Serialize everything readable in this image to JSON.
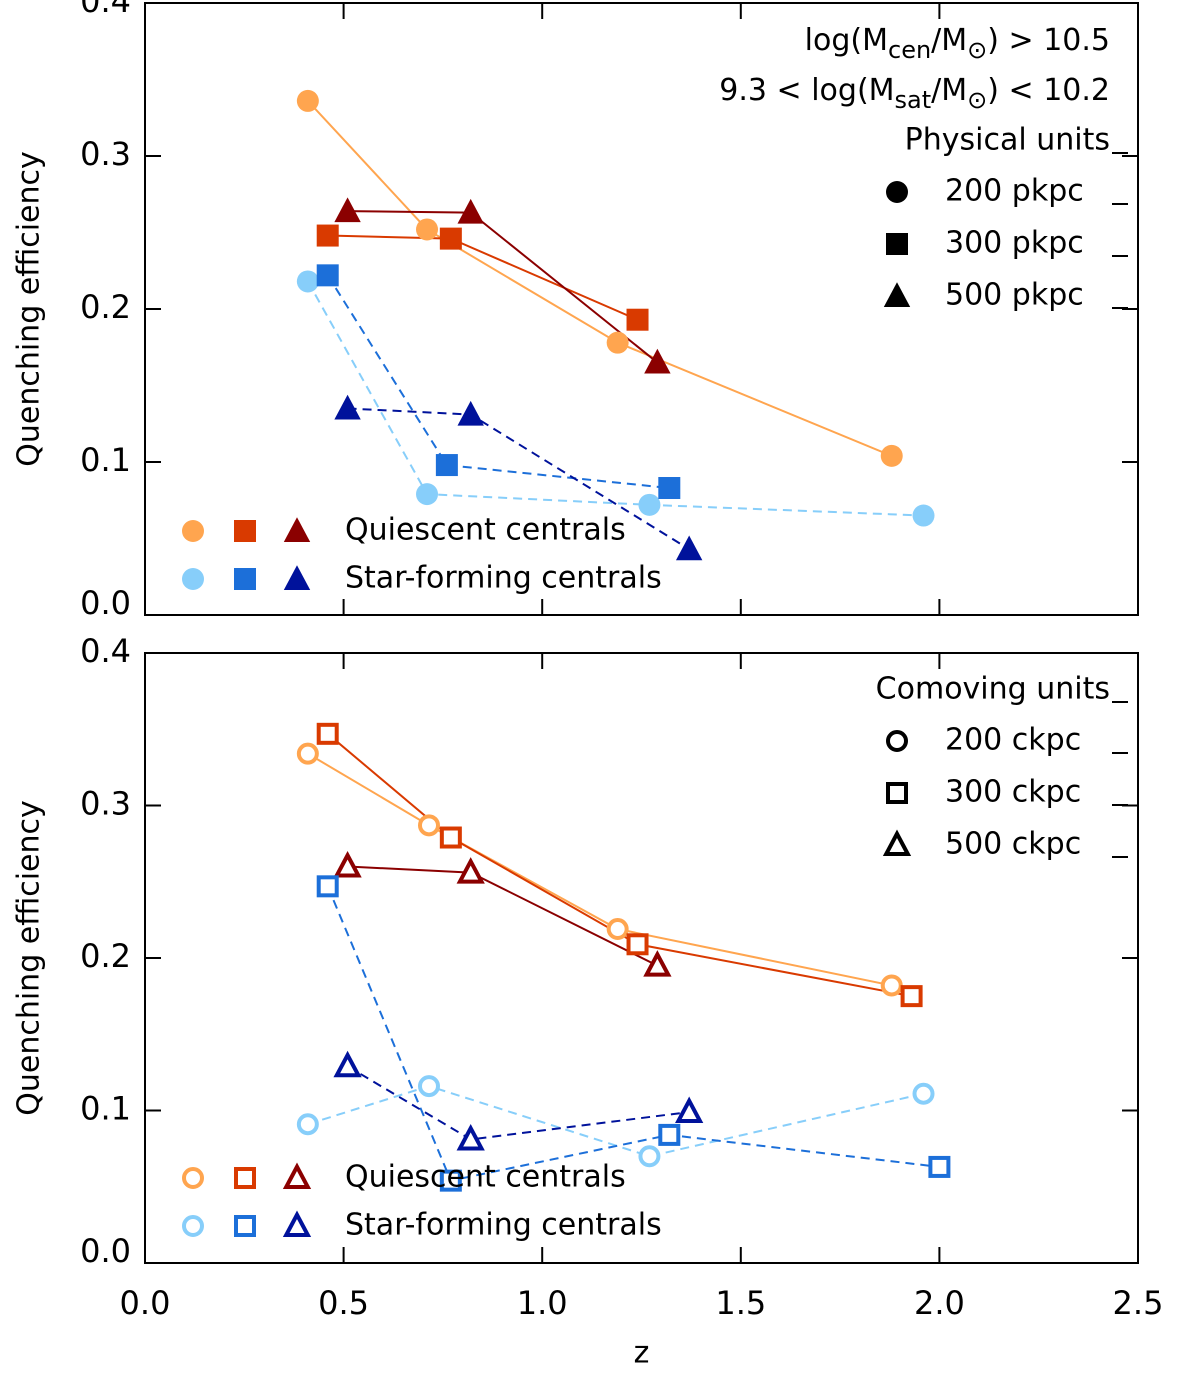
{
  "chart_data": [
    {
      "type": "line",
      "ylabel": "Quenching efficiency",
      "xlim": [
        0,
        2.5
      ],
      "xticks": [
        0,
        0.5,
        1,
        1.5,
        2,
        2.5
      ],
      "xtick_labels": false,
      "ylim": [
        0,
        0.4
      ],
      "yticks": [
        {
          "value": 0,
          "label": "0.0"
        },
        0.1,
        0.2,
        0.3,
        0.4
      ],
      "annotations": [
        [
          "log(M",
          "cen",
          "/M",
          "⊙",
          ") > 10.5"
        ],
        [
          "9.3 < log(M",
          "sat",
          "/M",
          "⊙",
          ") < 10.2"
        ]
      ],
      "legend_title": "Physical units",
      "markers": [
        "circle",
        "square",
        "triangle"
      ],
      "marker_labels": [
        "200 pkpc",
        "300 pkpc",
        "500 pkpc"
      ],
      "filled": true,
      "groups": [
        {
          "name": "Quiescent centrals",
          "dashed": false,
          "series": [
            {
              "color": "#ffa54f",
              "x": [
                0.41,
                0.71,
                1.19,
                1.88
              ],
              "values": [
                0.336,
                0.252,
                0.178,
                0.104
              ]
            },
            {
              "color": "#d93a00",
              "x": [
                0.46,
                0.77,
                1.24
              ],
              "values": [
                0.248,
                0.246,
                0.193
              ]
            },
            {
              "color": "#8b0000",
              "x": [
                0.51,
                0.82,
                1.29
              ],
              "values": [
                0.264,
                0.263,
                0.165
              ]
            }
          ]
        },
        {
          "name": "Star-forming centrals",
          "dashed": true,
          "series": [
            {
              "color": "#87cefa",
              "x": [
                0.41,
                0.71,
                1.27,
                1.96
              ],
              "values": [
                0.218,
                0.079,
                0.072,
                0.065
              ]
            },
            {
              "color": "#1c6fd9",
              "x": [
                0.46,
                0.76,
                1.32
              ],
              "values": [
                0.222,
                0.098,
                0.083
              ]
            },
            {
              "color": "#00129b",
              "x": [
                0.51,
                0.82,
                1.37
              ],
              "values": [
                0.135,
                0.131,
                0.043
              ]
            }
          ]
        }
      ]
    },
    {
      "type": "line",
      "ylabel": "Quenching efficiency",
      "xlabel": "z",
      "xlim": [
        0,
        2.5
      ],
      "xticks": [
        {
          "value": 0,
          "label": "0.0"
        },
        0.5,
        {
          "value": 1,
          "label": "1.0"
        },
        1.5,
        {
          "value": 2,
          "label": "2.0"
        },
        2.5
      ],
      "xtick_labels": true,
      "ylim": [
        0,
        0.4
      ],
      "yticks": [
        {
          "value": 0,
          "label": "0.0"
        },
        0.1,
        0.2,
        0.3,
        0.4
      ],
      "legend_title": "Comoving units",
      "markers": [
        "circle",
        "square",
        "triangle"
      ],
      "marker_labels": [
        "200 ckpc",
        "300 ckpc",
        "500 ckpc"
      ],
      "filled": false,
      "groups": [
        {
          "name": "Quiescent centrals",
          "dashed": false,
          "series": [
            {
              "color": "#ffa54f",
              "x": [
                0.41,
                0.715,
                1.19,
                1.88
              ],
              "values": [
                0.334,
                0.287,
                0.219,
                0.182
              ]
            },
            {
              "color": "#d93a00",
              "x": [
                0.46,
                0.77,
                1.24,
                1.93
              ],
              "values": [
                0.347,
                0.279,
                0.209,
                0.175
              ]
            },
            {
              "color": "#8b0000",
              "x": [
                0.51,
                0.82,
                1.29
              ],
              "values": [
                0.26,
                0.256,
                0.195
              ]
            }
          ]
        },
        {
          "name": "Star-forming centrals",
          "dashed": true,
          "series": [
            {
              "color": "#87cefa",
              "x": [
                0.41,
                0.715,
                1.27,
                1.96
              ],
              "values": [
                0.091,
                0.116,
                0.07,
                0.111
              ]
            },
            {
              "color": "#1c6fd9",
              "x": [
                0.46,
                0.77,
                1.32,
                2.0
              ],
              "values": [
                0.247,
                0.054,
                0.084,
                0.063
              ]
            },
            {
              "color": "#00129b",
              "x": [
                0.51,
                0.82,
                1.37
              ],
              "values": [
                0.129,
                0.081,
                0.099
              ]
            }
          ]
        }
      ]
    }
  ]
}
